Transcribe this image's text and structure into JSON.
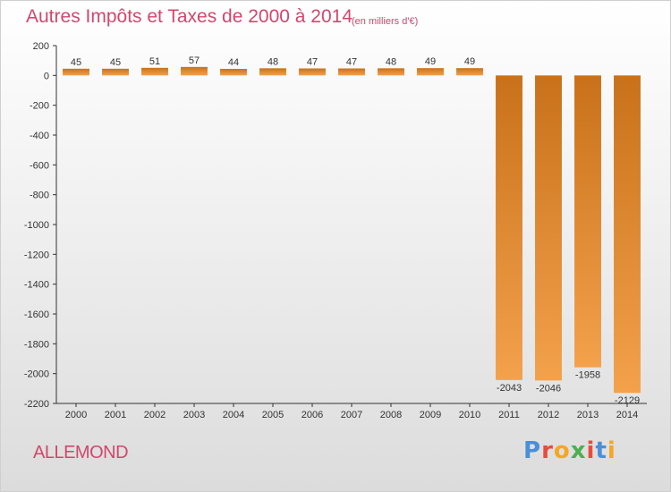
{
  "header": {
    "title": "Autres Impôts et Taxes de 2000 à 2014",
    "unit": "(en milliers d'€)"
  },
  "footer": {
    "commune": "ALLEMOND",
    "logo_text": "Proxiti"
  },
  "colors": {
    "bar_top": "#c8711a",
    "bar_bottom": "#f4a14c",
    "title": "#d2476c",
    "logo": [
      "#4a8fd8",
      "#e84b3c",
      "#f5a623",
      "#4caf50",
      "#e84b3c",
      "#4a8fd8",
      "#f5a623"
    ]
  },
  "chart_data": {
    "type": "bar",
    "categories": [
      "2000",
      "2001",
      "2002",
      "2003",
      "2004",
      "2005",
      "2006",
      "2007",
      "2008",
      "2009",
      "2010",
      "2011",
      "2012",
      "2013",
      "2014"
    ],
    "values": [
      45,
      45,
      51,
      57,
      44,
      48,
      47,
      47,
      48,
      49,
      49,
      -2043,
      -2046,
      -1958,
      -2129
    ],
    "yticks": [
      200,
      0,
      -200,
      -400,
      -600,
      -800,
      -1000,
      -1200,
      -1400,
      -1600,
      -1800,
      -2000,
      -2200
    ],
    "ylim": [
      -2200,
      200
    ],
    "grid": false,
    "legend": "none"
  }
}
